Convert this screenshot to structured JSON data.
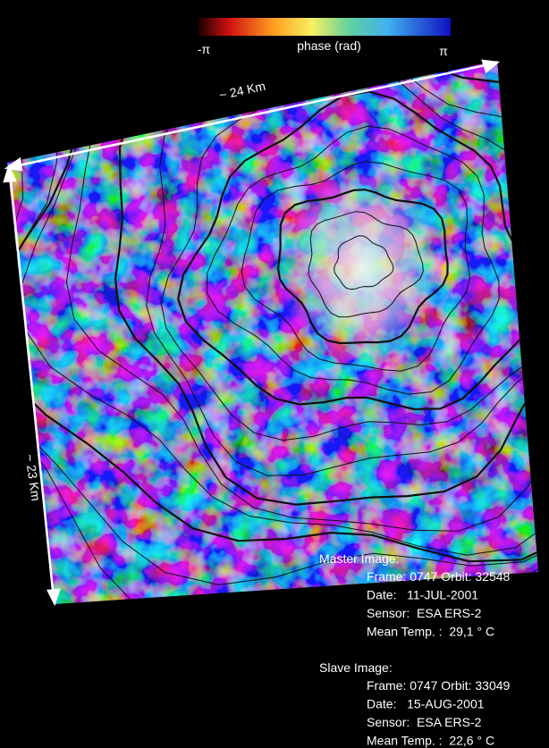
{
  "colorbar": {
    "min_label": "-π",
    "title": "phase (rad)",
    "max_label": "π"
  },
  "scale": {
    "width": "~ 24 Km",
    "height": "~ 23 Km"
  },
  "master": {
    "heading": "Master Image:",
    "lines": [
      "Frame: 0747 Orbit: 32548",
      "Date:   11-JUL-2001",
      "Sensor:  ESA ERS-2",
      "Mean Temp. :  29,1 ° C"
    ]
  },
  "slave": {
    "heading": "Slave Image:",
    "lines": [
      "Frame: 0747 Orbit: 33049",
      "Date:   15-AUG-2001",
      "Sensor:  ESA ERS-2",
      "Mean Temp. :  22,6 ° C"
    ]
  }
}
